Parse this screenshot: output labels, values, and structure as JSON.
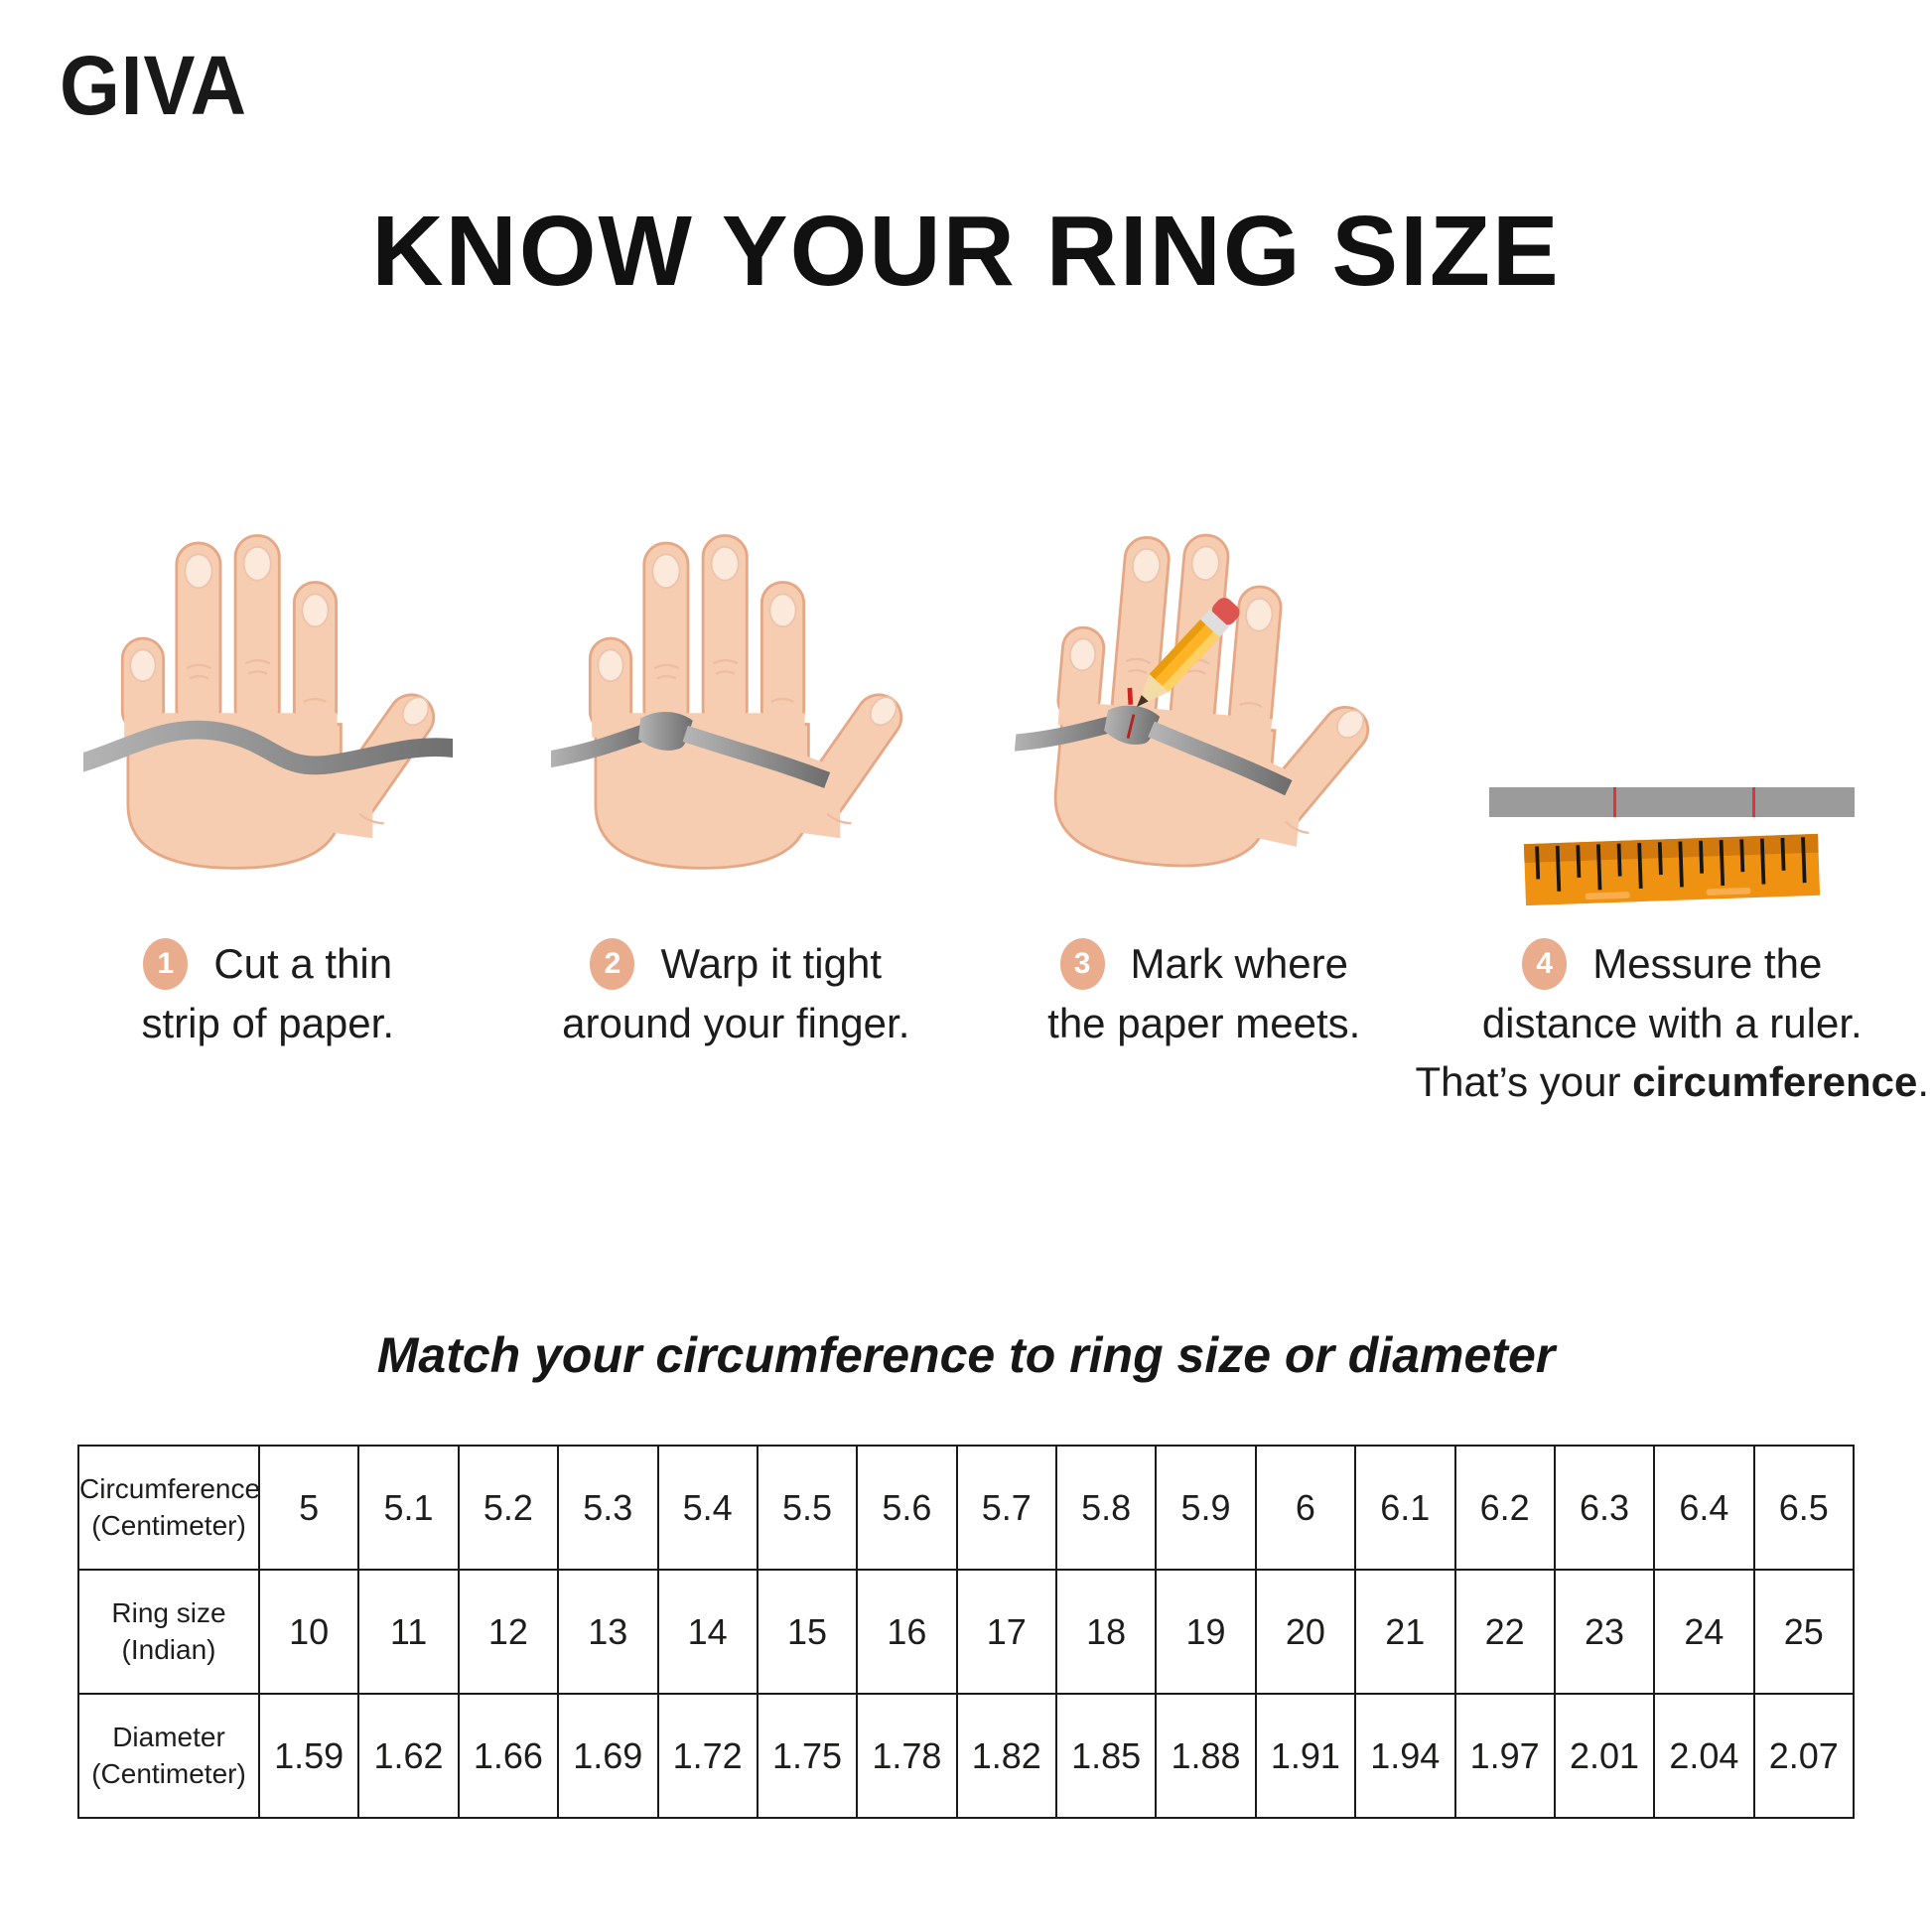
{
  "brand": {
    "logo": "GIVA"
  },
  "title": "KNOW YOUR RING SIZE",
  "steps": [
    {
      "number": "1",
      "line1": "Cut a thin",
      "line2": "strip of paper."
    },
    {
      "number": "2",
      "line1": "Warp it tight",
      "line2": "around your finger."
    },
    {
      "number": "3",
      "line1": "Mark where",
      "line2": "the paper meets."
    },
    {
      "number": "4",
      "line1": "Messure the",
      "line2": "distance with a ruler.",
      "line3_normal": "That’s your ",
      "line3_bold": "circumference",
      "line3_end": "."
    }
  ],
  "chart_data": {
    "type": "table",
    "title": "Match your circumference to ring size or diameter",
    "rows": [
      {
        "header_line1": "Circumference",
        "header_line2": "(Centimeter)",
        "values": [
          "5",
          "5.1",
          "5.2",
          "5.3",
          "5.4",
          "5.5",
          "5.6",
          "5.7",
          "5.8",
          "5.9",
          "6",
          "6.1",
          "6.2",
          "6.3",
          "6.4",
          "6.5"
        ]
      },
      {
        "header_line1": "Ring size",
        "header_line2": "(Indian)",
        "values": [
          "10",
          "11",
          "12",
          "13",
          "14",
          "15",
          "16",
          "17",
          "18",
          "19",
          "20",
          "21",
          "22",
          "23",
          "24",
          "25"
        ]
      },
      {
        "header_line1": "Diameter",
        "header_line2": "(Centimeter)",
        "values": [
          "1.59",
          "1.62",
          "1.66",
          "1.69",
          "1.72",
          "1.75",
          "1.78",
          "1.82",
          "1.85",
          "1.88",
          "1.91",
          "1.94",
          "1.97",
          "2.01",
          "2.04",
          "2.07"
        ]
      }
    ]
  },
  "colors": {
    "badge": "#E9AC8C",
    "skin": "#F7CDB2",
    "strip_gray": "#9B9B9B",
    "ruler_orange": "#EF9211",
    "mark_red": "#E0342F"
  }
}
